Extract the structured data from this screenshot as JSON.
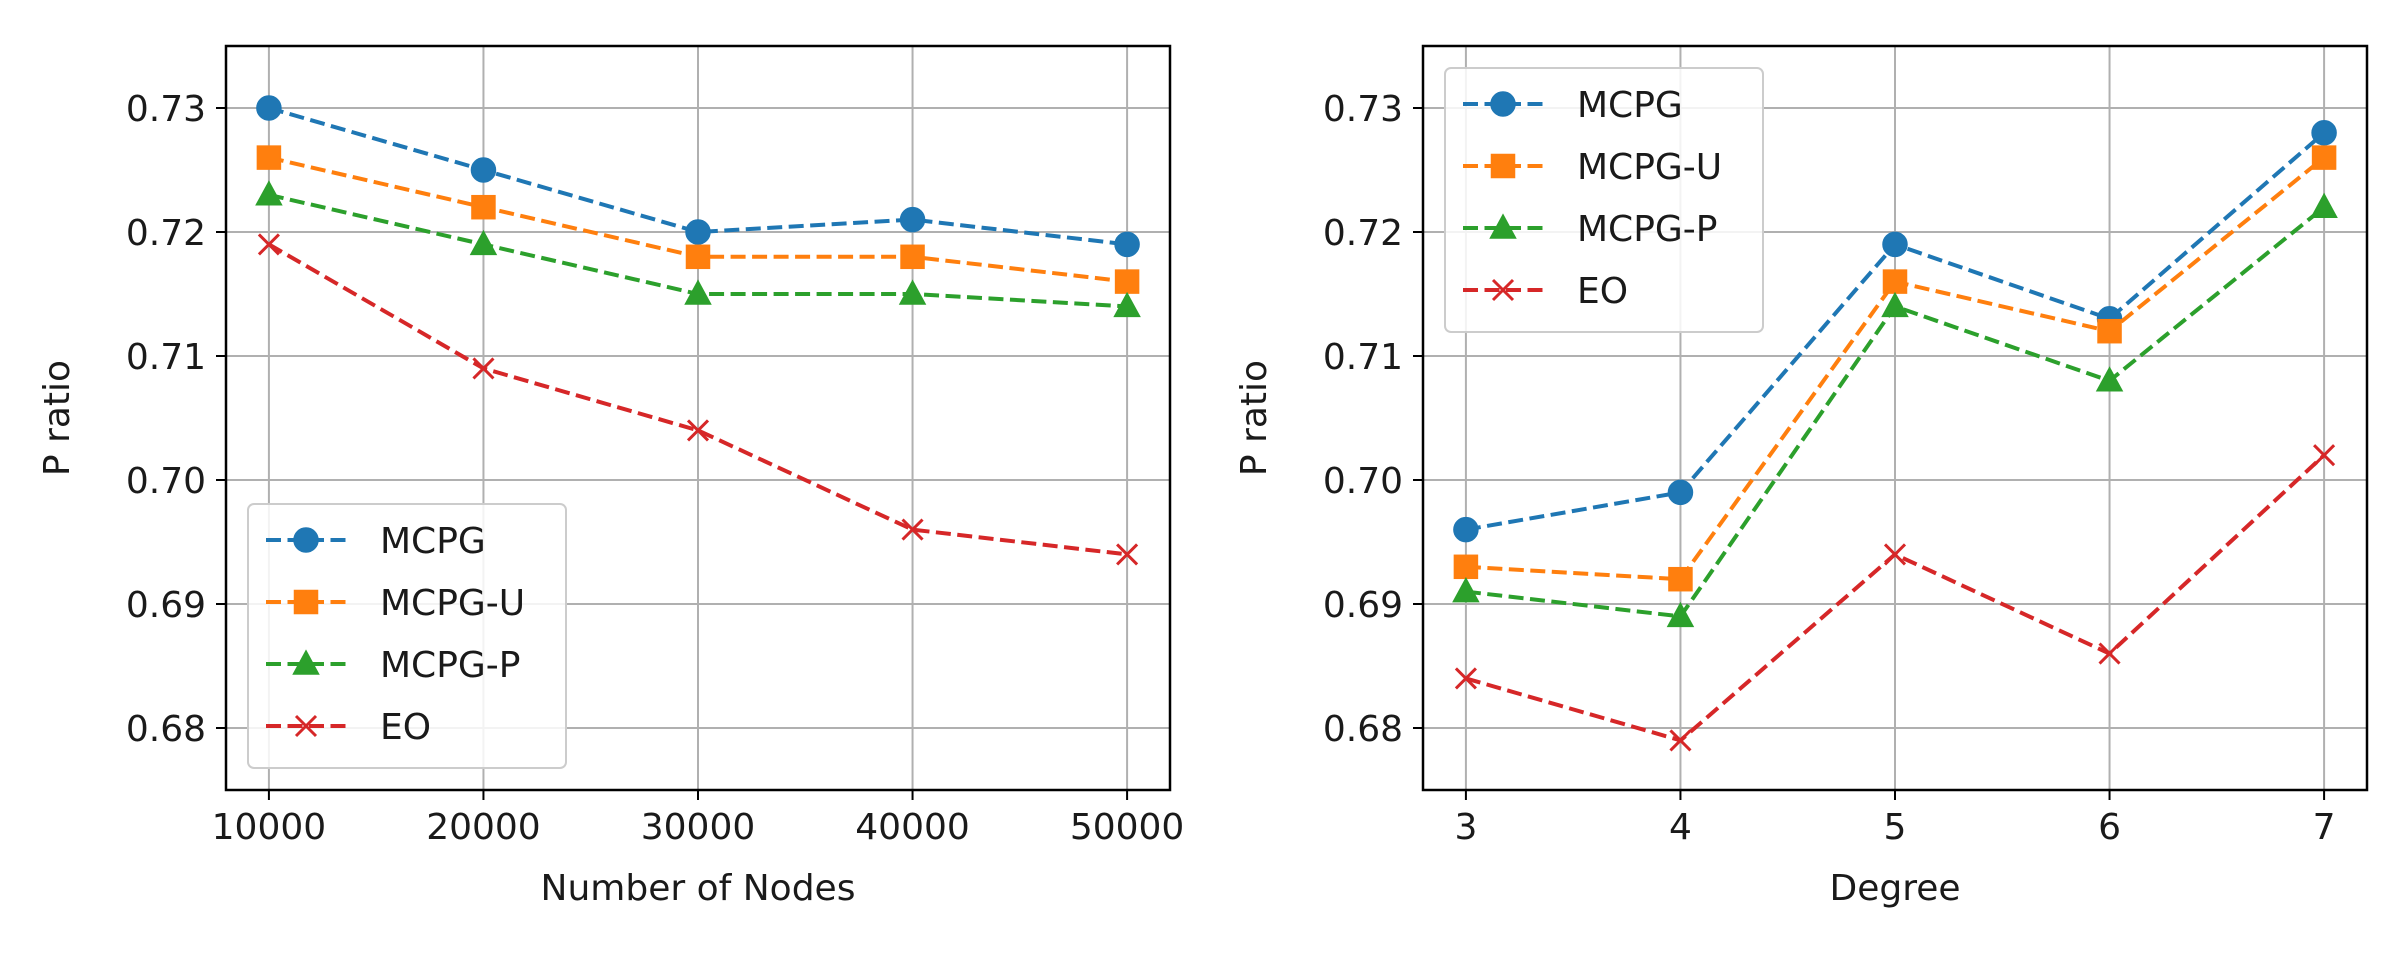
{
  "chart_data": [
    {
      "type": "line",
      "title": "",
      "xlabel": "Number of Nodes",
      "ylabel": "P ratio",
      "x": [
        10000,
        20000,
        30000,
        40000,
        50000
      ],
      "xtick_labels": [
        "10000",
        "20000",
        "30000",
        "40000",
        "50000"
      ],
      "xlim": [
        8000,
        52000
      ],
      "ylim": [
        0.675,
        0.735
      ],
      "yticks": [
        0.68,
        0.69,
        0.7,
        0.71,
        0.72,
        0.73
      ],
      "ytick_labels": [
        "0.68",
        "0.69",
        "0.70",
        "0.71",
        "0.72",
        "0.73"
      ],
      "grid": true,
      "legend_position": "lower-left",
      "series": [
        {
          "name": "MCPG",
          "color": "#1f77b4",
          "marker": "circle",
          "values": [
            0.73,
            0.725,
            0.72,
            0.721,
            0.719
          ]
        },
        {
          "name": "MCPG-U",
          "color": "#ff7f0e",
          "marker": "square",
          "values": [
            0.726,
            0.722,
            0.718,
            0.718,
            0.716
          ]
        },
        {
          "name": "MCPG-P",
          "color": "#2ca02c",
          "marker": "triangle",
          "values": [
            0.723,
            0.719,
            0.715,
            0.715,
            0.714
          ]
        },
        {
          "name": "EO",
          "color": "#d62728",
          "marker": "x",
          "values": [
            0.719,
            0.709,
            0.704,
            0.696,
            0.694
          ]
        }
      ]
    },
    {
      "type": "line",
      "title": "",
      "xlabel": "Degree",
      "ylabel": "P ratio",
      "x": [
        3,
        4,
        5,
        6,
        7
      ],
      "xtick_labels": [
        "3",
        "4",
        "5",
        "6",
        "7"
      ],
      "xlim": [
        2.8,
        7.2
      ],
      "ylim": [
        0.675,
        0.735
      ],
      "yticks": [
        0.68,
        0.69,
        0.7,
        0.71,
        0.72,
        0.73
      ],
      "ytick_labels": [
        "0.68",
        "0.69",
        "0.70",
        "0.71",
        "0.72",
        "0.73"
      ],
      "grid": true,
      "legend_position": "upper-left",
      "series": [
        {
          "name": "MCPG",
          "color": "#1f77b4",
          "marker": "circle",
          "values": [
            0.696,
            0.699,
            0.719,
            0.713,
            0.728
          ]
        },
        {
          "name": "MCPG-U",
          "color": "#ff7f0e",
          "marker": "square",
          "values": [
            0.693,
            0.692,
            0.716,
            0.712,
            0.726
          ]
        },
        {
          "name": "MCPG-P",
          "color": "#2ca02c",
          "marker": "triangle",
          "values": [
            0.691,
            0.689,
            0.714,
            0.708,
            0.722
          ]
        },
        {
          "name": "EO",
          "color": "#d62728",
          "marker": "x",
          "values": [
            0.684,
            0.679,
            0.694,
            0.686,
            0.702
          ]
        }
      ]
    }
  ]
}
